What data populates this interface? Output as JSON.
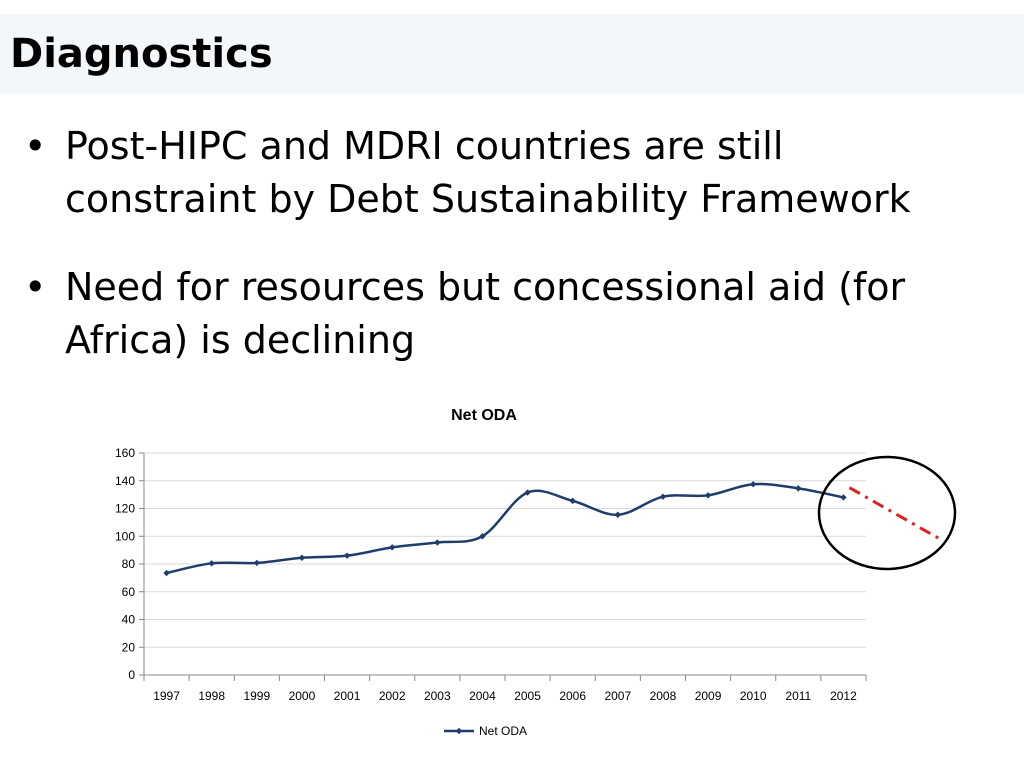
{
  "slide": {
    "title": "Diagnostics",
    "bullets": [
      "Post-HIPC and MDRI countries are still constraint by Debt Sustainability Framework",
      "Need for resources but concessional aid (for Africa) is declining"
    ]
  },
  "chart_data": {
    "type": "line",
    "title": "Net ODA",
    "xlabel": "",
    "ylabel": "",
    "categories": [
      "1997",
      "1998",
      "1999",
      "2000",
      "2001",
      "2002",
      "2003",
      "2004",
      "2005",
      "2006",
      "2007",
      "2008",
      "2009",
      "2010",
      "2011",
      "2012"
    ],
    "series": [
      {
        "name": "Net ODA",
        "color": "#1f3d6b",
        "values": [
          73.5,
          80.5,
          80.8,
          84.5,
          86,
          92,
          95.5,
          100,
          131.5,
          125.5,
          115.5,
          128.5,
          129.5,
          137.5,
          134.5,
          128
        ]
      }
    ],
    "ylim": [
      0,
      160
    ],
    "yticks": [
      0,
      20,
      40,
      60,
      80,
      100,
      120,
      140,
      160
    ],
    "grid": true,
    "legend": "bottom",
    "annotations": {
      "trend_line_color": "#e02020",
      "trend_start_value": 135,
      "trend_end_value": 98,
      "circle_color": "#000000"
    }
  }
}
